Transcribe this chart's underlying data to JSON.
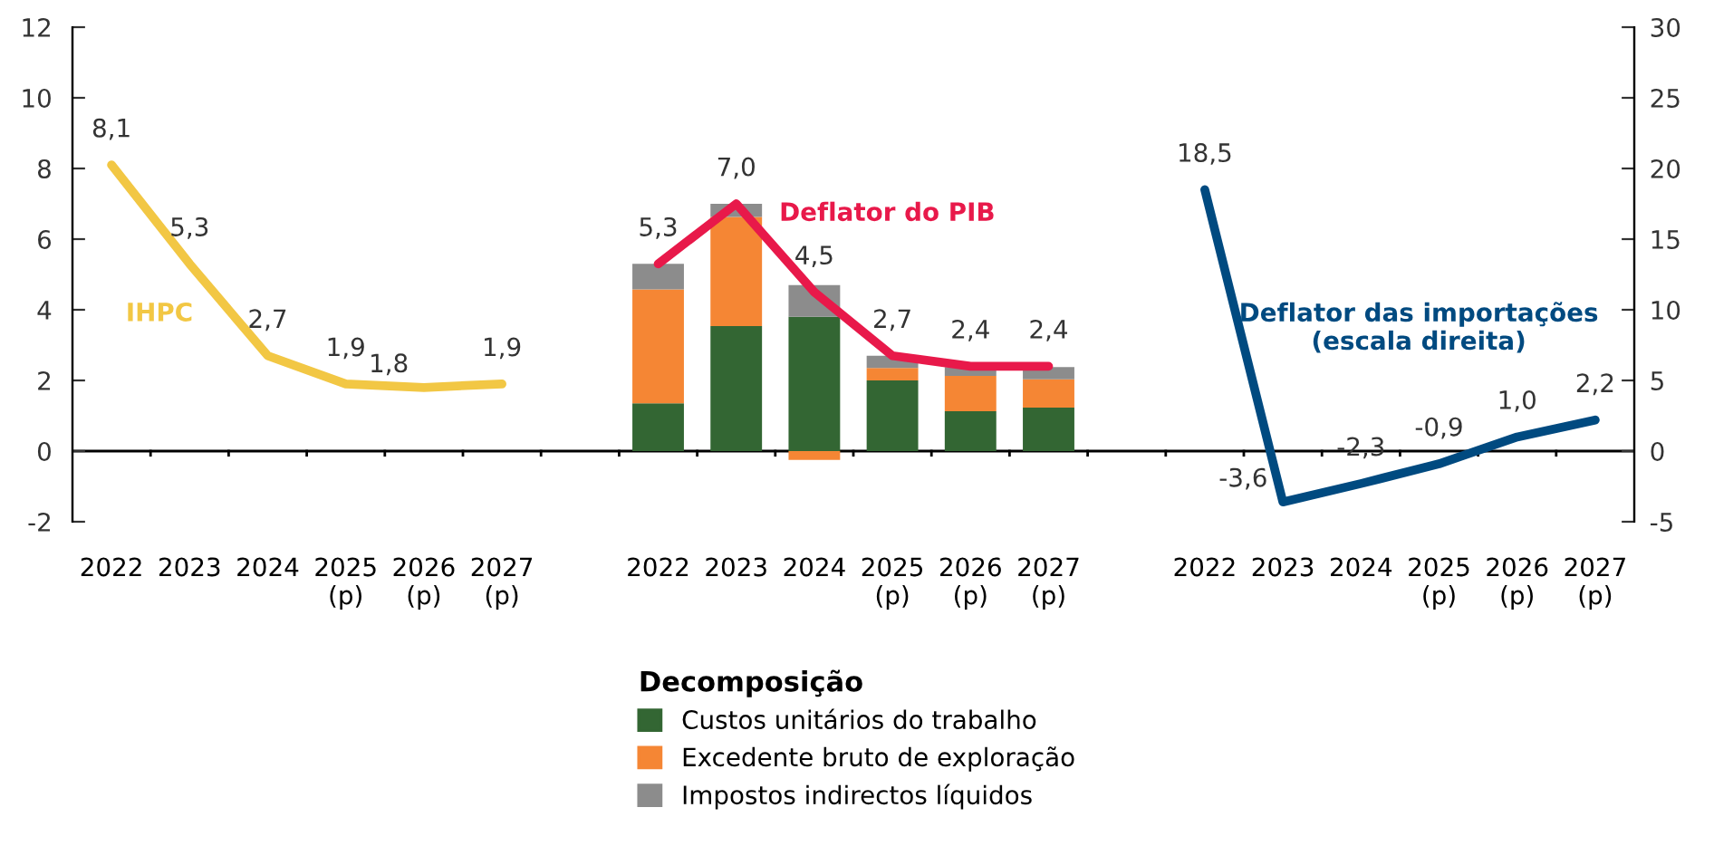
{
  "chart_data": {
    "type": "bar",
    "stacked": true,
    "legend": "bottom",
    "legend_title": "Decomposição",
    "categories": [
      "2022",
      "2023",
      "2024",
      "2025\n(p)",
      "2026\n(p)",
      "2027\n(p)",
      null,
      "2022",
      "2023",
      "2024",
      "2025\n(p)",
      "2026\n(p)",
      "2027\n(p)",
      null,
      "2022",
      "2023",
      "2024",
      "2025\n(p)",
      "2026\n(p)",
      "2027\n(p)"
    ],
    "ylim": [
      -2,
      12
    ],
    "yticks": [
      -2,
      0,
      2,
      4,
      6,
      8,
      10,
      12
    ],
    "y2lim": [
      -5,
      30
    ],
    "y2ticks": [
      -5,
      0,
      5,
      10,
      15,
      20,
      25,
      30
    ],
    "series": [
      {
        "name": "Custos unitários do trabalho",
        "color": "#336633",
        "values": [
          null,
          null,
          null,
          null,
          null,
          null,
          null,
          1.35,
          3.54,
          3.8,
          2.0,
          1.13,
          1.23,
          null,
          null,
          null,
          null,
          null,
          null,
          null
        ]
      },
      {
        "name": "Excedente bruto de exploração",
        "color": "#f58634",
        "values": [
          null,
          null,
          null,
          null,
          null,
          null,
          null,
          3.23,
          3.09,
          -0.25,
          0.35,
          1.0,
          0.8,
          null,
          null,
          null,
          null,
          null,
          null,
          null
        ]
      },
      {
        "name": "Impostos indirectos líquidos",
        "color": "#8c8c8c",
        "values": [
          null,
          null,
          null,
          null,
          null,
          null,
          null,
          0.72,
          0.37,
          0.9,
          0.35,
          0.25,
          0.35,
          null,
          null,
          null,
          null,
          null,
          null,
          null
        ]
      },
      {
        "name": "IHPC",
        "type": "line",
        "color": "#f2c744",
        "values": [
          8.1,
          5.3,
          2.7,
          1.9,
          1.8,
          1.9,
          null,
          null,
          null,
          null,
          null,
          null,
          null,
          null,
          null,
          null,
          null,
          null,
          null,
          null
        ],
        "value_labels": [
          "8,1",
          "5,3",
          "2,7",
          "1,9",
          "1,8",
          "1,9",
          null,
          null,
          null,
          null,
          null,
          null,
          null,
          null,
          null,
          null,
          null,
          null,
          null,
          null
        ]
      },
      {
        "name": "Deflator do PIB",
        "type": "line",
        "color": "#e8194a",
        "values": [
          null,
          null,
          null,
          null,
          null,
          null,
          null,
          5.3,
          7.0,
          4.5,
          2.7,
          2.4,
          2.4,
          null,
          null,
          null,
          null,
          null,
          null,
          null
        ],
        "value_labels": [
          null,
          null,
          null,
          null,
          null,
          null,
          null,
          "5,3",
          "7,0",
          "4,5",
          "2,7",
          "2,4",
          "2,4",
          null,
          null,
          null,
          null,
          null,
          null,
          null
        ]
      },
      {
        "name": "Deflator das importações\n(escala direita)",
        "type": "line",
        "axis": "y2",
        "color": "#004a80",
        "values": [
          null,
          null,
          null,
          null,
          null,
          null,
          null,
          null,
          null,
          null,
          null,
          null,
          null,
          null,
          18.5,
          -3.6,
          -2.3,
          -0.9,
          1.0,
          2.2
        ],
        "value_labels": [
          null,
          null,
          null,
          null,
          null,
          null,
          null,
          null,
          null,
          null,
          null,
          null,
          null,
          null,
          "18,5",
          "-3,6",
          "-2,3",
          "-0,9",
          "1,0",
          "2,2"
        ]
      }
    ]
  }
}
